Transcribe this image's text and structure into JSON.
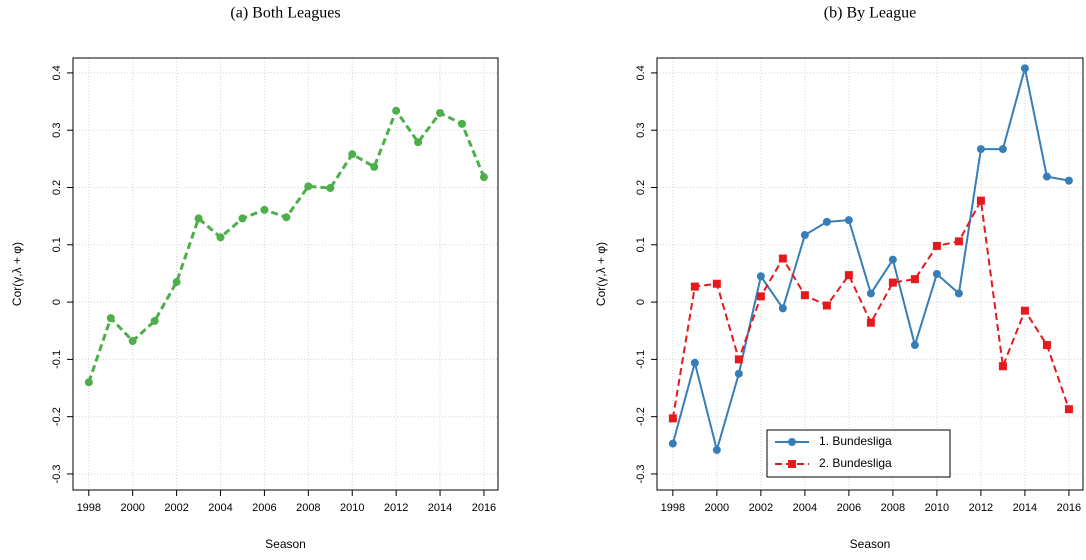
{
  "chart_data": [
    {
      "type": "line",
      "title": "(a) Both Leagues",
      "x_label": "Season",
      "y_label": "Cor(γ,λ + φ)",
      "x": [
        1998,
        1999,
        2000,
        2001,
        2002,
        2003,
        2004,
        2005,
        2006,
        2007,
        2008,
        2009,
        2010,
        2011,
        2012,
        2013,
        2014,
        2015,
        2016
      ],
      "values": [
        -0.14,
        -0.028,
        -0.068,
        -0.033,
        0.035,
        0.146,
        0.113,
        0.146,
        0.161,
        0.148,
        0.202,
        0.199,
        0.258,
        0.236,
        0.334,
        0.279,
        0.33,
        0.311,
        0.218
      ],
      "color": "#4daf4a",
      "line_style": "dashed",
      "marker": "circle",
      "xlim": [
        1997.28,
        2016.64
      ],
      "ylim": [
        -0.328,
        0.426
      ],
      "xticks": [
        1998,
        2000,
        2002,
        2004,
        2006,
        2008,
        2010,
        2012,
        2014,
        2016
      ],
      "yticks": [
        -0.3,
        -0.2,
        -0.1,
        0,
        0.1,
        0.2,
        0.3,
        0.4
      ],
      "grid": true
    },
    {
      "type": "line",
      "title": "(b) By League",
      "x_label": "Season",
      "y_label": "Cor(γ,λ + φ)",
      "x": [
        1998,
        1999,
        2000,
        2001,
        2002,
        2003,
        2004,
        2005,
        2006,
        2007,
        2008,
        2009,
        2010,
        2011,
        2012,
        2013,
        2014,
        2015,
        2016
      ],
      "series": [
        {
          "name": "1. Bundesliga",
          "color": "#377eb8",
          "line_style": "solid",
          "marker": "circle",
          "values": [
            -0.247,
            -0.106,
            -0.258,
            -0.125,
            0.045,
            -0.011,
            0.117,
            0.14,
            0.143,
            0.015,
            0.074,
            -0.075,
            0.049,
            0.015,
            0.267,
            0.267,
            0.408,
            0.219,
            0.212
          ]
        },
        {
          "name": "2. Bundesliga",
          "color": "#e41a1c",
          "line_style": "dashed",
          "marker": "square",
          "values": [
            -0.203,
            0.027,
            0.032,
            -0.1,
            0.01,
            0.076,
            0.012,
            -0.006,
            0.047,
            -0.036,
            0.034,
            0.04,
            0.098,
            0.106,
            0.177,
            -0.112,
            -0.015,
            -0.075,
            -0.187
          ]
        }
      ],
      "xlim": [
        1997.28,
        2016.64
      ],
      "ylim": [
        -0.328,
        0.426
      ],
      "xticks": [
        1998,
        2000,
        2002,
        2004,
        2006,
        2008,
        2010,
        2012,
        2014,
        2016
      ],
      "yticks": [
        -0.3,
        -0.2,
        -0.1,
        0,
        0.1,
        0.2,
        0.3,
        0.4
      ],
      "grid": true,
      "legend": "bottom"
    }
  ]
}
